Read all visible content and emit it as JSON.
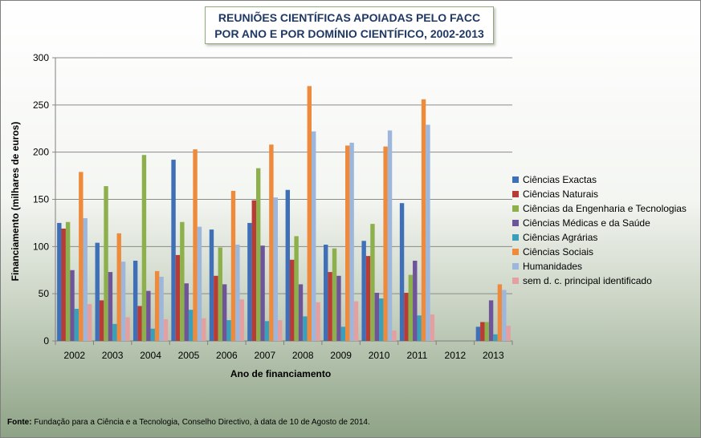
{
  "title_line1": "REUNIÕES CIENTÍFICAS APOIADAS PELO FACC",
  "title_line2": "POR ANO E POR DOMÍNIO CIENTÍFICO, 2002-2013",
  "source_label": "Fonte:",
  "source_text": " Fundação para a Ciência e a Tecnologia, Conselho Directivo, à data de 10 de Agosto de 2014.",
  "chart_data": {
    "type": "bar",
    "title": "REUNIÕES CIENTÍFICAS APOIADAS PELO FACC POR ANO E POR DOMÍNIO CIENTÍFICO, 2002-2013",
    "xlabel": "Ano de financiamento",
    "ylabel": "Financiamento (milhares de euros)",
    "ylim": [
      0,
      300
    ],
    "yticks": [
      0,
      50,
      100,
      150,
      200,
      250,
      300
    ],
    "grid": true,
    "legend_position": "right",
    "categories": [
      "2002",
      "2003",
      "2004",
      "2005",
      "2006",
      "2007",
      "2008",
      "2009",
      "2010",
      "2011",
      "2012",
      "2013"
    ],
    "series": [
      {
        "name": "Ciências Exactas",
        "color": "#3f6fb6",
        "values": [
          125,
          104,
          85,
          192,
          118,
          125,
          160,
          102,
          106,
          146,
          0,
          15
        ]
      },
      {
        "name": "Ciências Naturais",
        "color": "#b83b35",
        "values": [
          119,
          43,
          37,
          91,
          69,
          149,
          86,
          73,
          90,
          51,
          0,
          20
        ]
      },
      {
        "name": "Ciências da Engenharia e Tecnologias",
        "color": "#8db04c",
        "values": [
          126,
          164,
          197,
          126,
          99,
          183,
          111,
          98,
          124,
          70,
          0,
          20
        ]
      },
      {
        "name": "Ciências Médicas e da Saúde",
        "color": "#6e5499",
        "values": [
          75,
          73,
          53,
          61,
          60,
          101,
          60,
          69,
          51,
          85,
          0,
          43
        ]
      },
      {
        "name": "Ciências Agrárias",
        "color": "#3aa0b9",
        "values": [
          34,
          18,
          13,
          33,
          22,
          21,
          26,
          15,
          45,
          27,
          0,
          7
        ]
      },
      {
        "name": "Ciências Sociais",
        "color": "#ee8a3b",
        "values": [
          179,
          114,
          74,
          203,
          159,
          208,
          270,
          207,
          206,
          256,
          0,
          60
        ]
      },
      {
        "name": "Humanidades",
        "color": "#9db6dc",
        "values": [
          130,
          84,
          68,
          121,
          102,
          152,
          222,
          210,
          223,
          229,
          0,
          54
        ]
      },
      {
        "name": "sem d. c. principal identificado",
        "color": "#e4a0a0",
        "values": [
          39,
          25,
          23,
          24,
          44,
          22,
          41,
          42,
          11,
          28,
          0,
          16
        ]
      }
    ]
  }
}
